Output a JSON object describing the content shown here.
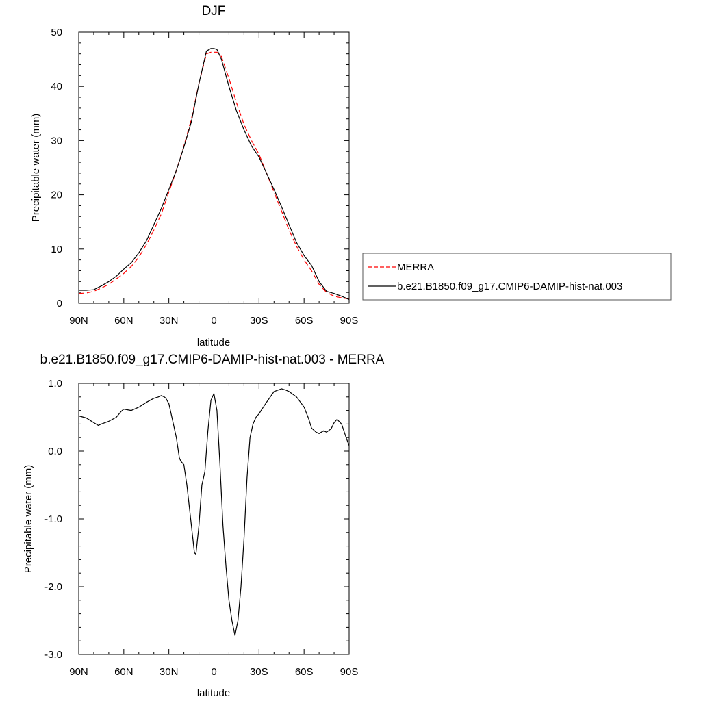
{
  "chart_data": [
    {
      "type": "line",
      "title": "DJF",
      "xlabel": "latitude",
      "ylabel": "Precipitable water (mm)",
      "xlim": [
        90,
        -90
      ],
      "ylim": [
        0,
        50
      ],
      "x_ticks": [
        90,
        60,
        30,
        0,
        -30,
        -60,
        -90
      ],
      "x_tick_labels": [
        "90N",
        "60N",
        "30N",
        "0",
        "30S",
        "60S",
        "90S"
      ],
      "y_ticks": [
        0,
        10,
        20,
        30,
        40,
        50
      ],
      "y_tick_labels": [
        "0",
        "10",
        "20",
        "30",
        "40",
        "50"
      ],
      "grid": false,
      "legend": {
        "placement": "right",
        "entries": [
          {
            "name": "MERRA",
            "color": "#ff0000",
            "dash": "dashed"
          },
          {
            "name": "b.e21.B1850.f09_g17.CMIP6-DAMIP-hist-nat.003",
            "color": "#000000",
            "dash": "solid"
          }
        ]
      },
      "series": [
        {
          "name": "MERRA",
          "color": "#ff0000",
          "dash": "dashed",
          "x": [
            90,
            85,
            80,
            75,
            70,
            65,
            60,
            55,
            50,
            45,
            40,
            35,
            30,
            25,
            20,
            15,
            10,
            5,
            2,
            0,
            -2,
            -5,
            -10,
            -15,
            -20,
            -25,
            -30,
            -35,
            -40,
            -45,
            -50,
            -55,
            -60,
            -65,
            -70,
            -75,
            -80,
            -85,
            -90
          ],
          "y": [
            1.8,
            1.9,
            2.2,
            2.8,
            3.5,
            4.5,
            5.5,
            6.8,
            8.5,
            10.8,
            13.5,
            16.5,
            20.5,
            24.5,
            29,
            34,
            40.5,
            46,
            46.3,
            46.3,
            46.3,
            45.5,
            41.5,
            37,
            33,
            30,
            27.5,
            24,
            20.5,
            17,
            13.5,
            10.5,
            8,
            6,
            3.5,
            2,
            1.3,
            1.0,
            0.8
          ]
        },
        {
          "name": "b.e21.B1850.f09_g17.CMIP6-DAMIP-hist-nat.003",
          "color": "#000000",
          "dash": "solid",
          "x": [
            90,
            85,
            80,
            75,
            70,
            65,
            60,
            55,
            50,
            45,
            40,
            35,
            30,
            25,
            20,
            15,
            10,
            5,
            2,
            0,
            -2,
            -5,
            -10,
            -15,
            -20,
            -25,
            -30,
            -35,
            -40,
            -45,
            -50,
            -55,
            -60,
            -65,
            -70,
            -75,
            -80,
            -85,
            -90
          ],
          "y": [
            2.4,
            2.4,
            2.5,
            3.2,
            4.0,
            5.0,
            6.3,
            7.5,
            9.3,
            11.5,
            14.5,
            17.5,
            21.0,
            24.5,
            28.8,
            33.5,
            40.5,
            46.5,
            47.0,
            47.0,
            46.8,
            45.0,
            40.0,
            35.5,
            32.0,
            29.0,
            27.0,
            24.0,
            21.0,
            17.8,
            14.5,
            11.2,
            8.8,
            7.0,
            4.0,
            2.2,
            1.8,
            1.3,
            0.7
          ]
        }
      ]
    },
    {
      "type": "line",
      "title": "b.e21.B1850.f09_g17.CMIP6-DAMIP-hist-nat.003 - MERRA",
      "xlabel": "latitude",
      "ylabel": "Precipitable water (mm)",
      "xlim": [
        90,
        -90
      ],
      "ylim": [
        -3,
        1
      ],
      "x_ticks": [
        90,
        60,
        30,
        0,
        -30,
        -60,
        -90
      ],
      "x_tick_labels": [
        "90N",
        "60N",
        "30N",
        "0",
        "30S",
        "60S",
        "90S"
      ],
      "y_ticks": [
        1,
        0,
        -1,
        -2,
        -3
      ],
      "y_tick_labels": [
        "1.0",
        "0.0",
        "-1.0",
        "-2.0",
        "-3.0"
      ],
      "grid": false,
      "series": [
        {
          "color": "#000000",
          "dash": "solid",
          "x": [
            90,
            85,
            80,
            77,
            75,
            70,
            65,
            62,
            60,
            55,
            50,
            45,
            40,
            37,
            35,
            33,
            32,
            30,
            28,
            25,
            23,
            22,
            20,
            18,
            15,
            13,
            12,
            10,
            8,
            6,
            4,
            2,
            0,
            -2,
            -4,
            -6,
            -8,
            -10,
            -12,
            -14,
            -16,
            -18,
            -20,
            -22,
            -24,
            -26,
            -28,
            -30,
            -32,
            -35,
            -40,
            -45,
            -48,
            -50,
            -55,
            -60,
            -63,
            -65,
            -68,
            -70,
            -73,
            -75,
            -78,
            -80,
            -82,
            -85,
            -88,
            -90
          ],
          "y": [
            0.52,
            0.49,
            0.42,
            0.38,
            0.4,
            0.44,
            0.5,
            0.58,
            0.62,
            0.6,
            0.65,
            0.72,
            0.78,
            0.8,
            0.82,
            0.8,
            0.78,
            0.7,
            0.5,
            0.2,
            -0.1,
            -0.15,
            -0.2,
            -0.5,
            -1.1,
            -1.5,
            -1.52,
            -1.1,
            -0.5,
            -0.3,
            0.3,
            0.75,
            0.85,
            0.6,
            -0.2,
            -1.1,
            -1.7,
            -2.2,
            -2.5,
            -2.72,
            -2.5,
            -2.0,
            -1.3,
            -0.4,
            0.2,
            0.4,
            0.5,
            0.55,
            0.62,
            0.72,
            0.88,
            0.92,
            0.9,
            0.88,
            0.8,
            0.65,
            0.48,
            0.34,
            0.28,
            0.26,
            0.3,
            0.28,
            0.33,
            0.42,
            0.47,
            0.4,
            0.2,
            0.08
          ]
        }
      ]
    }
  ]
}
